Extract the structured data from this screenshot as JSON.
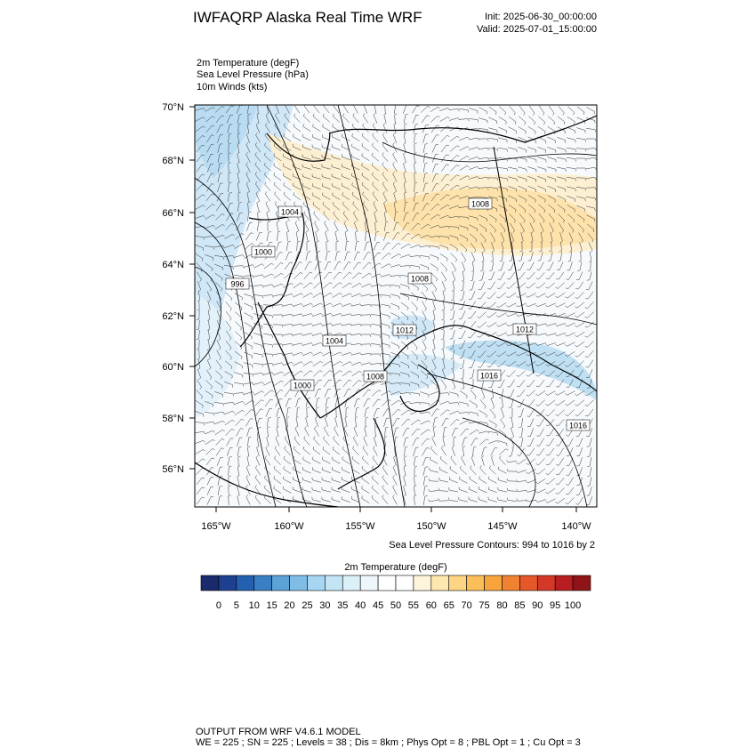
{
  "header": {
    "title": "IWFAQRP Alaska Real Time WRF",
    "init": "Init: 2025-06-30_00:00:00",
    "valid": "Valid: 2025-07-01_15:00:00"
  },
  "fields": [
    "2m Temperature   (degF)",
    "Sea Level Pressure   (hPa)",
    "10m Winds   (kts)"
  ],
  "map": {
    "lat_labels": [
      "70°N",
      "68°N",
      "66°N",
      "64°N",
      "62°N",
      "60°N",
      "58°N",
      "56°N"
    ],
    "lon_labels": [
      "165°W",
      "160°W",
      "155°W",
      "150°W",
      "145°W",
      "140°W"
    ],
    "contour_labels": [
      "1004",
      "1000",
      "996",
      "1008",
      "1008",
      "1012",
      "1012",
      "1004",
      "1000",
      "1008",
      "1016",
      "1016"
    ]
  },
  "contour_note": "Sea Level Pressure Contours: 994 to 1016 by 2",
  "colorbar": {
    "title": "2m Temperature  (degF)",
    "colors": [
      "#1a2a6c",
      "#1f3f91",
      "#2460b0",
      "#3a7fc4",
      "#5ba3d6",
      "#7fbde6",
      "#a6d6f2",
      "#c2e4f5",
      "#dcf0fa",
      "#eef7fc",
      "#ffffff",
      "#ffffff",
      "#fff5dc",
      "#ffe8b0",
      "#fdd585",
      "#fbbf5a",
      "#f7a43c",
      "#f08232",
      "#e5582a",
      "#d43826",
      "#b81d22",
      "#8f1418"
    ],
    "ticks": [
      0,
      5,
      10,
      15,
      20,
      25,
      30,
      35,
      40,
      45,
      50,
      55,
      60,
      65,
      70,
      75,
      80,
      85,
      90,
      95,
      100
    ]
  },
  "footer": {
    "line1": "OUTPUT FROM WRF V4.6.1 MODEL",
    "line2": "WE = 225 ; SN = 225 ; Levels = 38 ; Dis = 8km ; Phys Opt = 8 ; PBL Opt = 1 ; Cu Opt = 3"
  }
}
